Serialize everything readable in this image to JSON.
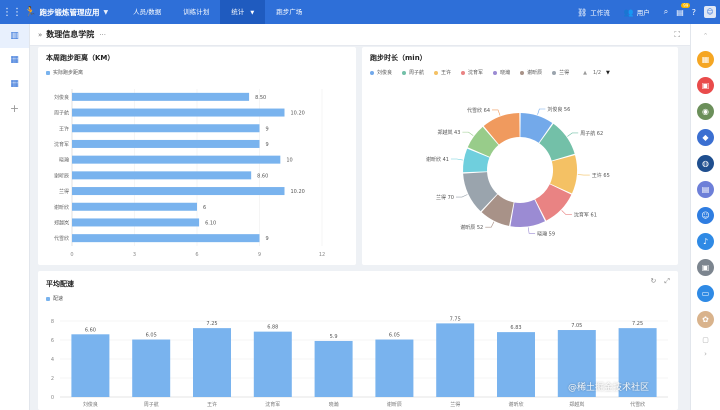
{
  "topbar": {
    "title": "跑步锻炼管理应用",
    "nav": [
      {
        "label": "人员/数据",
        "active": false
      },
      {
        "label": "训练计划",
        "active": false
      },
      {
        "label": "统计",
        "active": true,
        "caret": true
      },
      {
        "label": "跑步广场",
        "active": false
      }
    ],
    "workflow_label": "工作流",
    "user_label": "用户",
    "notification_count": "99"
  },
  "page": {
    "title": "数理信息学院"
  },
  "distance_chart": {
    "title": "本周跑步距离（KM）",
    "legend": "实际跑步距离",
    "color": "#79b3ee",
    "chart_data": {
      "type": "bar",
      "orientation": "horizontal",
      "categories": [
        "刘俊良",
        "周子航",
        "王许",
        "沈育军",
        "晓瀚",
        "谢昕辰",
        "兰得",
        "谢昕欣",
        "郑越岚",
        "代雪欣"
      ],
      "values": [
        8.5,
        10.2,
        9,
        9,
        10,
        8.6,
        10.2,
        6,
        6.1,
        9
      ],
      "value_labels": [
        "8.50",
        "10.20",
        "9",
        "9",
        "10",
        "8.60",
        "10.20",
        "6",
        "6.10",
        "9"
      ],
      "xlim": [
        0,
        12
      ],
      "xticks": [
        "0",
        "3",
        "6",
        "9",
        "12"
      ]
    }
  },
  "duration_chart": {
    "title": "跑步时长（min）",
    "legend_page": "1/2",
    "chart_data": {
      "type": "pie",
      "donut": true,
      "series": [
        {
          "name": "刘俊良",
          "value": 56,
          "color": "#73a9ea"
        },
        {
          "name": "周子航",
          "value": 62,
          "color": "#73c0a8"
        },
        {
          "name": "王许",
          "value": 65,
          "color": "#f4c164"
        },
        {
          "name": "沈育军",
          "value": 61,
          "color": "#e98383"
        },
        {
          "name": "晓瀚",
          "value": 59,
          "color": "#9b8bd3"
        },
        {
          "name": "谢昕辰",
          "value": 52,
          "color": "#a89288"
        },
        {
          "name": "兰得",
          "value": 70,
          "color": "#9aa4ad"
        },
        {
          "name": "谢昕欣",
          "value": 41,
          "color": "#6fcfdd"
        },
        {
          "name": "郑越岚",
          "value": 43,
          "color": "#98cc8a"
        },
        {
          "name": "代雪欣",
          "value": 64,
          "color": "#f09a5e"
        }
      ],
      "visible_legend": [
        "刘俊良",
        "周子航",
        "王许",
        "沈育军",
        "晓瀚",
        "谢昕辰",
        "兰得"
      ]
    }
  },
  "pace_chart": {
    "title": "平均配速",
    "legend": "配速",
    "color": "#79b3ee",
    "chart_data": {
      "type": "bar",
      "categories": [
        "刘俊良",
        "周子航",
        "王许",
        "沈育军",
        "晓瀚",
        "谢昕辰",
        "兰得",
        "谢昕欣",
        "郑越岚",
        "代雪欣"
      ],
      "values": [
        6.6,
        6.05,
        7.25,
        6.88,
        5.9,
        6.05,
        7.75,
        6.83,
        7.05,
        7.25
      ],
      "value_labels": [
        "6.60",
        "6.05",
        "7.25",
        "6.88",
        "5.9",
        "6.05",
        "7.75",
        "6.83",
        "7.05",
        "7.25"
      ],
      "ylim": [
        0,
        8
      ],
      "yticks": [
        "0",
        "2",
        "4",
        "6",
        "8"
      ]
    }
  },
  "watermark": "@稀土掘金技术社区"
}
